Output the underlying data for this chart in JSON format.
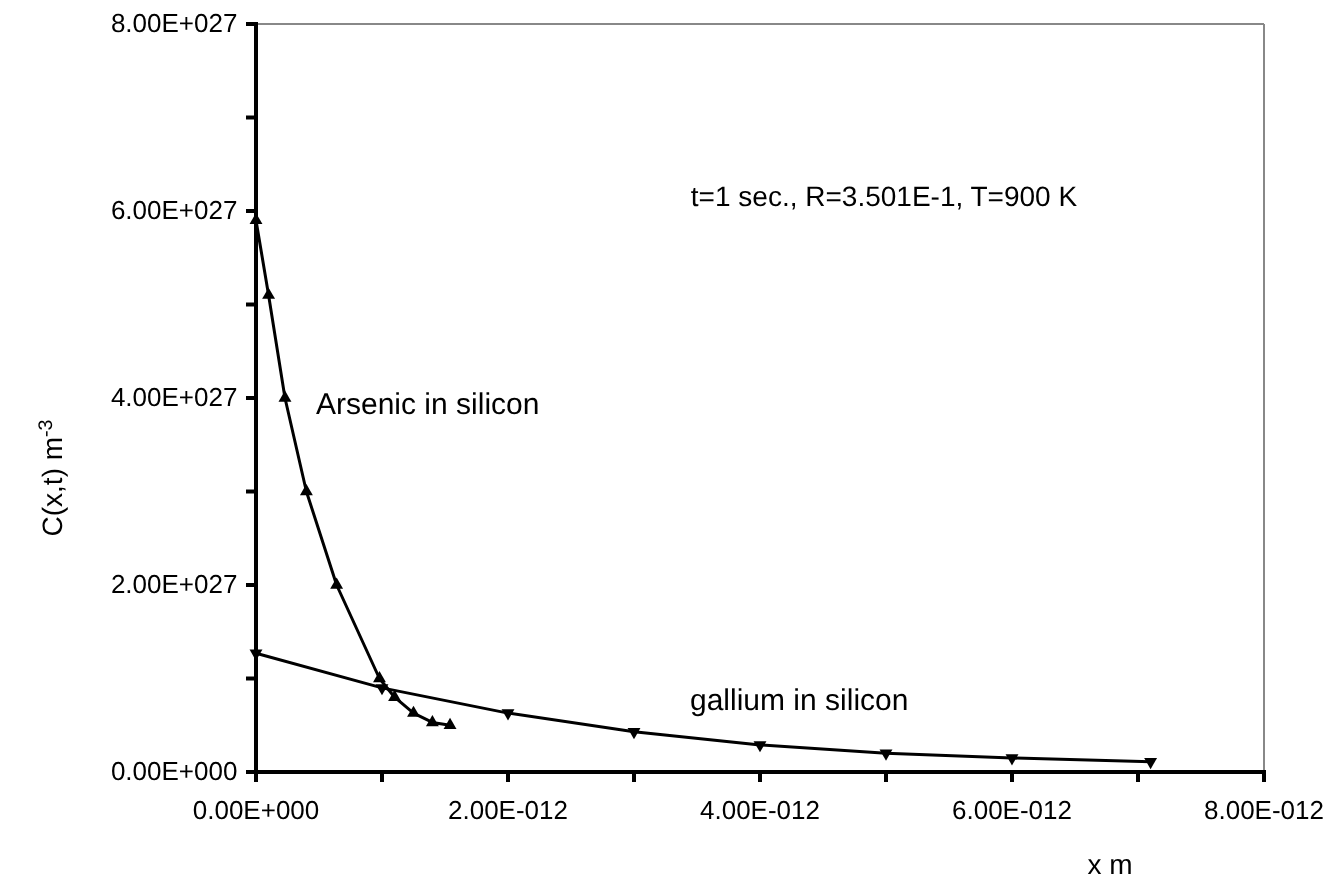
{
  "chart_data": {
    "type": "line",
    "xlabel": "x m",
    "ylabel": "C(x,t) m$^{-3}$",
    "annotations": [
      "t=1 sec., R=3.501E-1, T=900 K"
    ],
    "xlim": [
      0,
      8e-12
    ],
    "ylim": [
      0,
      8e+27
    ],
    "xticks": [
      {
        "value": 0,
        "label": "0.00E+000"
      },
      {
        "value": 1e-12,
        "label": null
      },
      {
        "value": 2e-12,
        "label": "2.00E-012"
      },
      {
        "value": 3e-12,
        "label": null
      },
      {
        "value": 4e-12,
        "label": "4.00E-012"
      },
      {
        "value": 5e-12,
        "label": null
      },
      {
        "value": 6e-12,
        "label": "6.00E-012"
      },
      {
        "value": 7e-12,
        "label": null
      },
      {
        "value": 8e-12,
        "label": "8.00E-012"
      }
    ],
    "yticks": [
      {
        "value": 0,
        "label": "0.00E+000"
      },
      {
        "value": 1e+27,
        "label": null
      },
      {
        "value": 2e+27,
        "label": "2.00E+027"
      },
      {
        "value": 3e+27,
        "label": null
      },
      {
        "value": 4e+27,
        "label": "4.00E+027"
      },
      {
        "value": 5e+27,
        "label": null
      },
      {
        "value": 6e+27,
        "label": "6.00E+027"
      },
      {
        "value": 7e+27,
        "label": null
      },
      {
        "value": 8e+27,
        "label": "8.00E+027"
      }
    ],
    "grid": false,
    "series": [
      {
        "name": "Arsenic in silicon",
        "color": "#000000",
        "marker": "triangle",
        "x": [
          0,
          1e-13,
          2.3e-13,
          4e-13,
          6.4e-13,
          9.8e-13,
          1.1e-12,
          1.25e-12,
          1.4e-12,
          1.54e-12
        ],
        "values": [
          5.9e+27,
          5.1e+27,
          4e+27,
          3e+27,
          2e+27,
          1e+27,
          8e+26,
          6.3e+26,
          5.3e+26,
          5e+26
        ]
      },
      {
        "name": "gallium in silicon",
        "color": "#000000",
        "marker": "triangle-down",
        "x": [
          0,
          1e-12,
          2e-12,
          3e-12,
          4e-12,
          5e-12,
          6e-12,
          7.1e-12
        ],
        "values": [
          1.27e+27,
          9e+26,
          6.3e+26,
          4.3e+26,
          2.9e+26,
          2e+26,
          1.5e+26,
          1.1e+26
        ]
      }
    ]
  }
}
